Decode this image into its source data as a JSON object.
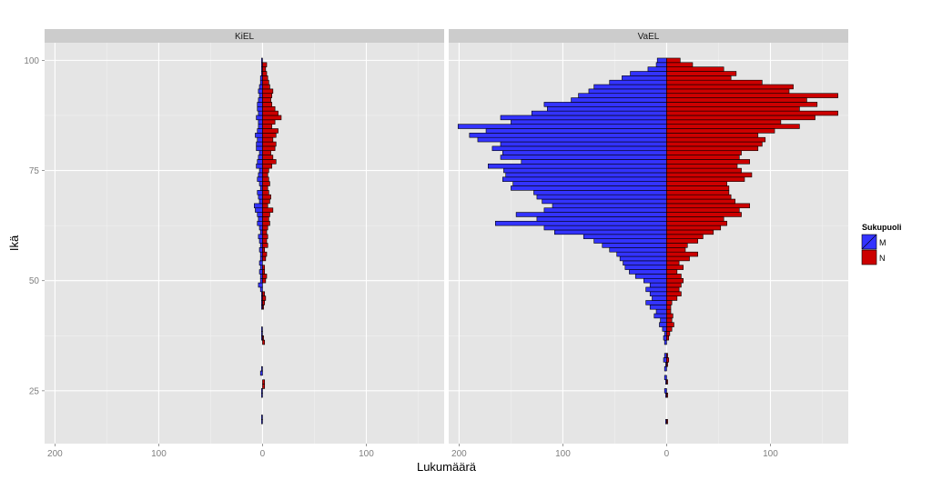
{
  "chart_data": {
    "type": "bar",
    "orientation": "horizontal",
    "title": "",
    "xlabel": "Lukumäärä",
    "ylabel": "Ikä",
    "ylim": [
      13,
      104
    ],
    "xlim": [
      -210,
      175
    ],
    "x_ticks": [
      {
        "value": -200,
        "label": "200"
      },
      {
        "value": -100,
        "label": "100"
      },
      {
        "value": 0,
        "label": "0"
      },
      {
        "value": 100,
        "label": "100"
      }
    ],
    "y_ticks": [
      {
        "value": 100,
        "label": "100"
      },
      {
        "value": 75,
        "label": "75"
      },
      {
        "value": 50,
        "label": "50"
      },
      {
        "value": 25,
        "label": "25"
      }
    ],
    "grid": true,
    "legend": {
      "title": "Sukupuoli",
      "position": "right",
      "entries": [
        {
          "label": "M",
          "color": "#3333ff"
        },
        {
          "label": "N",
          "color": "#cc0000"
        }
      ]
    },
    "colors": {
      "M": "#3333ff",
      "N": "#cc0000"
    },
    "panels": [
      {
        "name": "KiEL",
        "series": [
          {
            "name": "M",
            "ages": [
              18,
              19,
              24,
              25,
              29,
              30,
              37,
              38,
              39,
              44,
              45,
              46,
              47,
              48,
              49,
              50,
              51,
              52,
              53,
              54,
              55,
              56,
              57,
              58,
              59,
              60,
              61,
              62,
              63,
              64,
              65,
              66,
              67,
              68,
              69,
              70,
              71,
              72,
              73,
              74,
              75,
              76,
              77,
              78,
              79,
              80,
              81,
              82,
              83,
              84,
              85,
              86,
              87,
              88,
              89,
              90,
              91,
              92,
              93,
              94,
              95,
              96,
              97,
              98,
              99,
              100
            ],
            "values": [
              1,
              1,
              1,
              1,
              2,
              1,
              1,
              1,
              1,
              1,
              1,
              1,
              1,
              2,
              4,
              2,
              2,
              3,
              2,
              3,
              2,
              2,
              3,
              2,
              3,
              4,
              2,
              3,
              5,
              4,
              5,
              7,
              8,
              3,
              4,
              5,
              2,
              3,
              5,
              4,
              3,
              6,
              5,
              4,
              3,
              6,
              6,
              5,
              7,
              5,
              4,
              4,
              6,
              4,
              5,
              5,
              4,
              3,
              4,
              3,
              2,
              2,
              1,
              1,
              1,
              1
            ]
          },
          {
            "name": "N",
            "ages": [
              26,
              27,
              36,
              37,
              44,
              45,
              46,
              47,
              50,
              51,
              52,
              53,
              55,
              56,
              57,
              58,
              59,
              60,
              61,
              62,
              63,
              64,
              65,
              66,
              67,
              68,
              69,
              70,
              71,
              72,
              73,
              74,
              75,
              76,
              77,
              78,
              79,
              80,
              81,
              82,
              83,
              84,
              85,
              86,
              87,
              88,
              89,
              90,
              91,
              92,
              93,
              94,
              95,
              96,
              97,
              98,
              99
            ],
            "values": [
              2,
              2,
              2,
              1,
              1,
              2,
              3,
              2,
              3,
              4,
              2,
              2,
              3,
              4,
              2,
              5,
              4,
              5,
              4,
              5,
              7,
              6,
              7,
              10,
              5,
              7,
              8,
              6,
              5,
              7,
              6,
              5,
              6,
              9,
              13,
              10,
              8,
              12,
              13,
              10,
              13,
              15,
              9,
              12,
              18,
              15,
              12,
              9,
              8,
              9,
              10,
              7,
              6,
              5,
              4,
              3,
              4
            ]
          }
        ]
      },
      {
        "name": "VaEL",
        "series": [
          {
            "name": "M",
            "ages": [
              18,
              24,
              25,
              27,
              28,
              30,
              31,
              32,
              33,
              36,
              37,
              38,
              39,
              40,
              41,
              42,
              43,
              44,
              45,
              46,
              47,
              48,
              49,
              50,
              51,
              52,
              53,
              54,
              55,
              56,
              57,
              58,
              59,
              60,
              61,
              62,
              63,
              64,
              65,
              66,
              67,
              68,
              69,
              70,
              71,
              72,
              73,
              74,
              75,
              76,
              77,
              78,
              79,
              80,
              81,
              82,
              83,
              84,
              85,
              86,
              87,
              88,
              89,
              90,
              91,
              92,
              93,
              94,
              95,
              96,
              97,
              98,
              99,
              100
            ],
            "values": [
              1,
              1,
              2,
              1,
              2,
              2,
              1,
              3,
              2,
              2,
              3,
              2,
              4,
              7,
              6,
              12,
              10,
              16,
              20,
              14,
              16,
              20,
              16,
              22,
              30,
              36,
              40,
              42,
              45,
              48,
              55,
              62,
              70,
              80,
              108,
              118,
              165,
              125,
              145,
              118,
              110,
              120,
              125,
              128,
              150,
              148,
              158,
              155,
              157,
              172,
              140,
              160,
              158,
              168,
              160,
              182,
              190,
              174,
              201,
              150,
              160,
              130,
              115,
              118,
              92,
              85,
              75,
              70,
              55,
              43,
              35,
              18,
              10,
              9
            ]
          },
          {
            "name": "N",
            "ages": [
              18,
              24,
              27,
              31,
              32,
              33,
              37,
              38,
              39,
              40,
              41,
              42,
              43,
              44,
              45,
              46,
              47,
              48,
              49,
              50,
              51,
              52,
              53,
              54,
              55,
              56,
              57,
              58,
              59,
              60,
              61,
              62,
              63,
              64,
              65,
              66,
              67,
              68,
              69,
              70,
              71,
              72,
              73,
              74,
              75,
              76,
              77,
              78,
              79,
              80,
              81,
              82,
              83,
              84,
              85,
              86,
              87,
              88,
              89,
              90,
              91,
              92,
              93,
              94,
              95,
              96,
              97,
              98,
              99,
              100
            ],
            "values": [
              1,
              1,
              1,
              1,
              2,
              1,
              2,
              3,
              5,
              7,
              5,
              6,
              4,
              4,
              5,
              10,
              14,
              12,
              14,
              16,
              14,
              10,
              16,
              12,
              22,
              30,
              18,
              20,
              30,
              35,
              45,
              52,
              58,
              55,
              72,
              70,
              80,
              66,
              62,
              60,
              60,
              58,
              75,
              82,
              72,
              68,
              80,
              70,
              72,
              88,
              92,
              95,
              88,
              104,
              128,
              110,
              143,
              165,
              128,
              145,
              135,
              165,
              118,
              122,
              92,
              62,
              67,
              55,
              25,
              13
            ]
          }
        ]
      }
    ]
  }
}
